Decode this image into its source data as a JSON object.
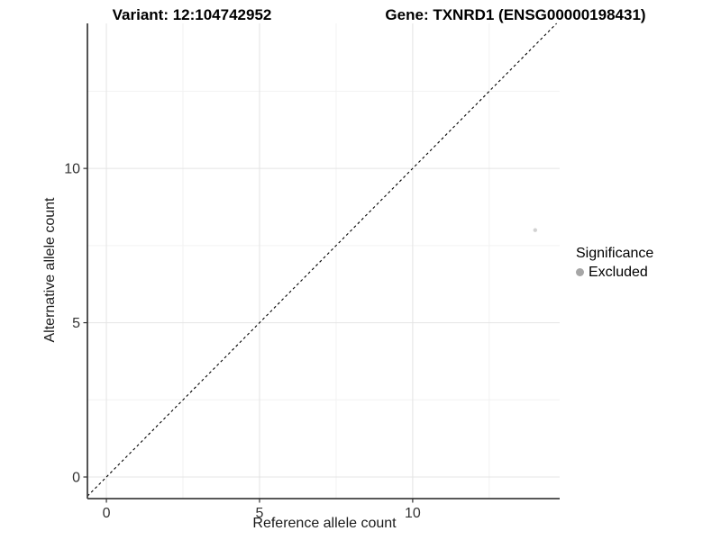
{
  "figure": {
    "title_left": "Variant: 12:104742952",
    "title_right": "Gene: TXNRD1 (ENSG00000198431)"
  },
  "chart_data": {
    "type": "scatter",
    "title_left": "Variant: 12:104742952",
    "title_right": "Gene: TXNRD1 (ENSG00000198431)",
    "xlabel": "Reference allele count",
    "ylabel": "Alternative allele count",
    "xlim": [
      -0.62,
      14.8
    ],
    "ylim": [
      -0.7,
      14.7
    ],
    "xticks": [
      0,
      5,
      10
    ],
    "yticks": [
      0,
      5,
      10
    ],
    "xminor": [
      2.5,
      7.5,
      12.5
    ],
    "yminor": [
      2.5,
      7.5,
      12.5
    ],
    "grid": true,
    "identity_line": {
      "slope": 1,
      "intercept": 0,
      "style": "dashed",
      "color": "#000000"
    },
    "series": [
      {
        "name": "Excluded",
        "points": [
          {
            "x": 14,
            "y": 8
          }
        ],
        "point_color": "#d2d2d2",
        "point_radius": 2.2
      }
    ],
    "legend": {
      "title": "Significance",
      "position": "right",
      "entries": [
        {
          "label": "Excluded",
          "color": "#a6a6a6"
        }
      ]
    },
    "colors": {
      "grid_major": "#e4e4e4",
      "grid_minor": "#f2f2f2",
      "axis_line": "#404040",
      "tick_mark": "#333333",
      "tick_label": "#333333",
      "panel_background": "#ffffff"
    }
  }
}
